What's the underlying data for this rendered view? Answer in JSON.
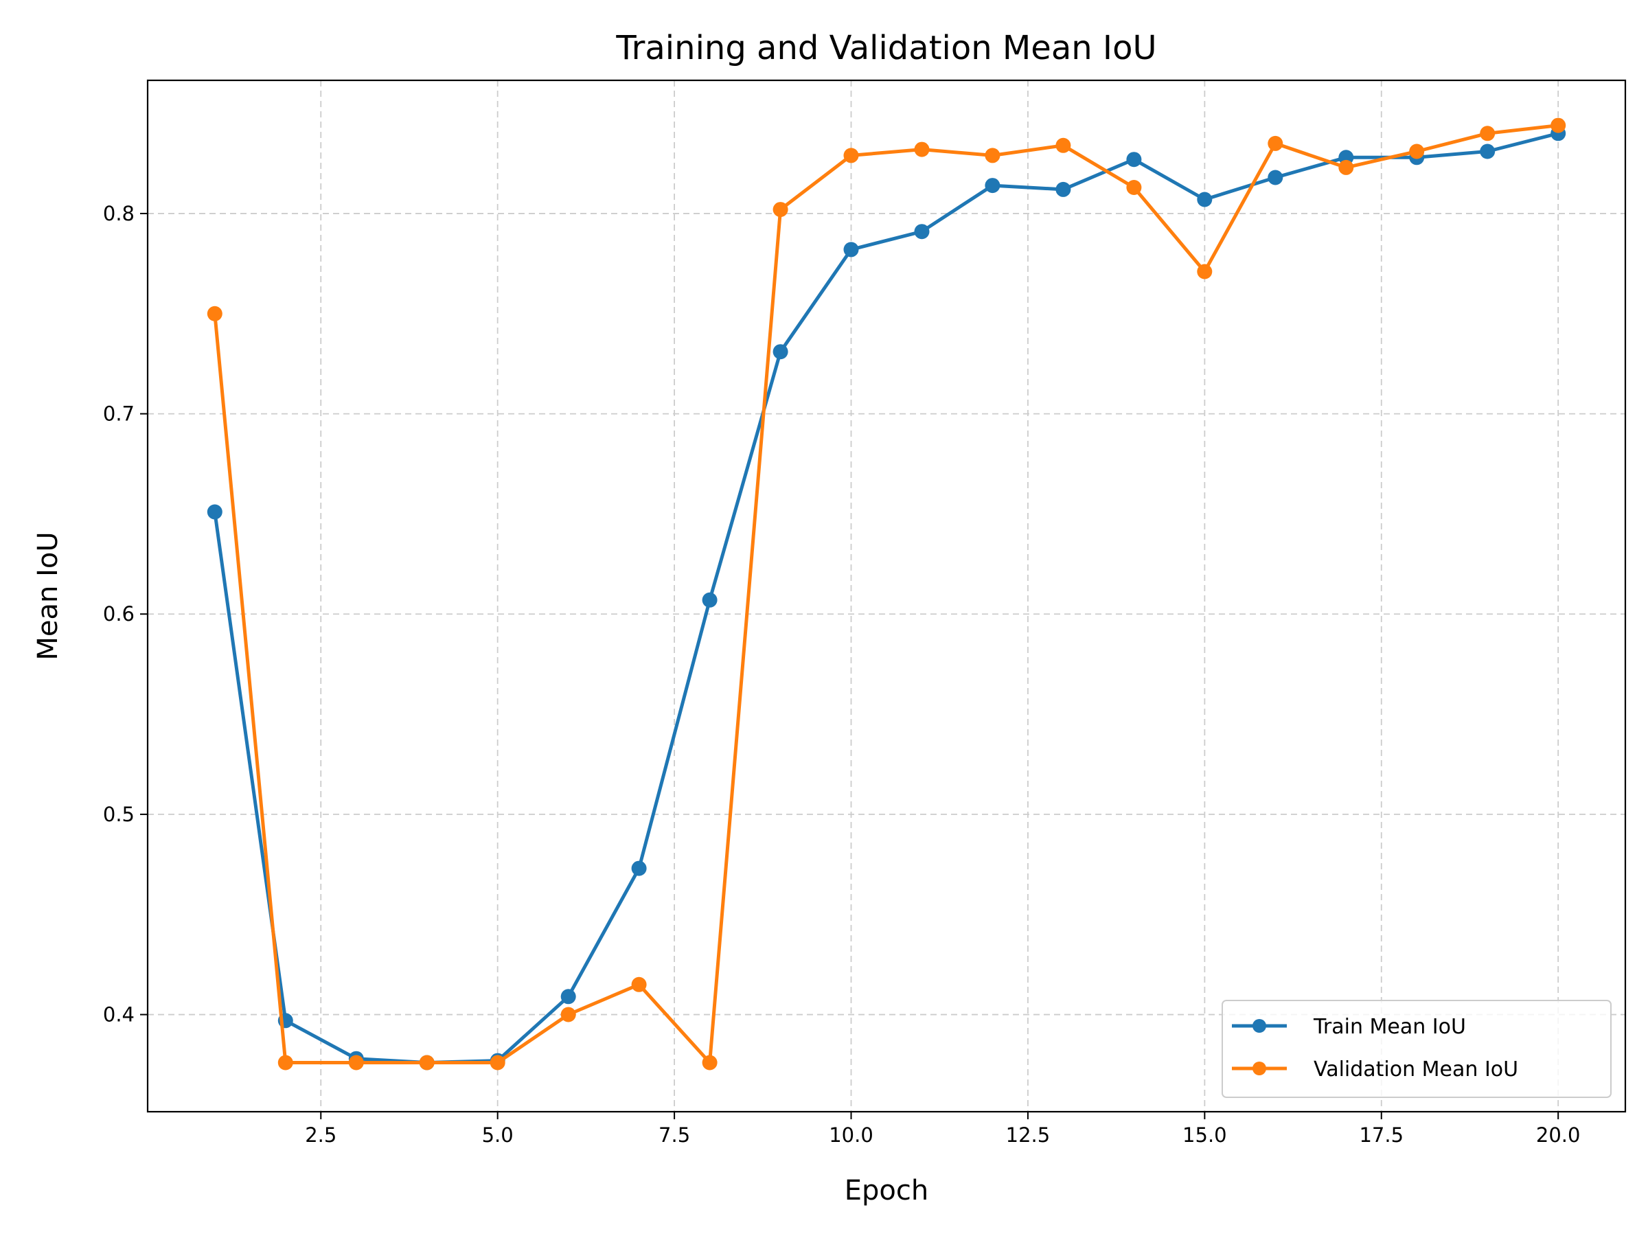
{
  "chart_data": {
    "type": "line",
    "title": "Training and Validation Mean IoU",
    "xlabel": "Epoch",
    "ylabel": "Mean IoU",
    "xlim": [
      0.05,
      20.95
    ],
    "ylim": [
      0.3515,
      0.8665
    ],
    "xticks": [
      2.5,
      5.0,
      7.5,
      10.0,
      12.5,
      15.0,
      17.5,
      20.0
    ],
    "xtick_labels": [
      "2.5",
      "5.0",
      "7.5",
      "10.0",
      "12.5",
      "15.0",
      "17.5",
      "20.0"
    ],
    "yticks": [
      0.4,
      0.5,
      0.6,
      0.7,
      0.8
    ],
    "ytick_labels": [
      "0.4",
      "0.5",
      "0.6",
      "0.7",
      "0.8"
    ],
    "grid": true,
    "legend_position": "lower right",
    "x": [
      1,
      2,
      3,
      4,
      5,
      6,
      7,
      8,
      9,
      10,
      11,
      12,
      13,
      14,
      15,
      16,
      17,
      18,
      19,
      20
    ],
    "series": [
      {
        "name": "Train Mean IoU",
        "color": "#1f77b4",
        "values": [
          0.651,
          0.397,
          0.378,
          0.376,
          0.377,
          0.409,
          0.473,
          0.607,
          0.731,
          0.782,
          0.791,
          0.814,
          0.812,
          0.827,
          0.807,
          0.818,
          0.828,
          0.828,
          0.831,
          0.84
        ]
      },
      {
        "name": "Validation Mean IoU",
        "color": "#ff7f0e",
        "values": [
          0.75,
          0.376,
          0.376,
          0.376,
          0.376,
          0.4,
          0.415,
          0.376,
          0.802,
          0.829,
          0.832,
          0.829,
          0.834,
          0.813,
          0.771,
          0.835,
          0.823,
          0.831,
          0.84,
          0.844
        ]
      }
    ]
  }
}
